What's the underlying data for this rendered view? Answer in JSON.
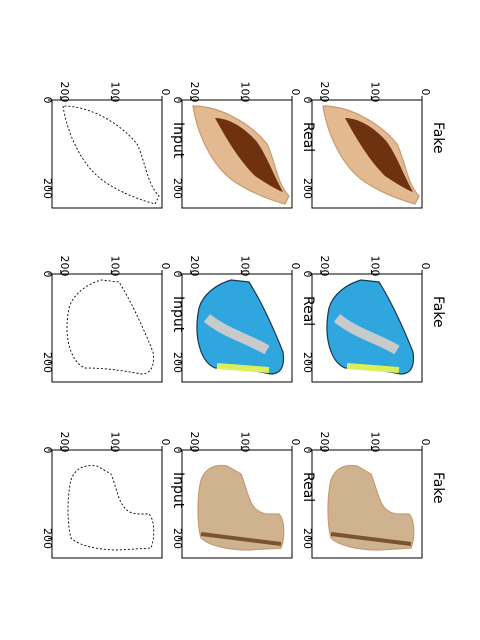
{
  "figure": {
    "rows": [
      {
        "id": "shoe",
        "panels": [
          {
            "title": "Fake",
            "image": "tan shoe with dark brown lining (generated)"
          },
          {
            "title": "Real",
            "image": "tan shoe with dark brown lining (photo)"
          },
          {
            "title": "Input",
            "image": "edge sketch of shoe"
          }
        ]
      },
      {
        "id": "sneaker",
        "panels": [
          {
            "title": "Fake",
            "image": "blue and grey running sneaker (generated)"
          },
          {
            "title": "Real",
            "image": "blue, grey and yellow running sneaker (photo)"
          },
          {
            "title": "Input",
            "image": "edge sketch of sneaker"
          }
        ]
      },
      {
        "id": "boot",
        "panels": [
          {
            "title": "Fake",
            "image": "beige suede boot (generated)"
          },
          {
            "title": "Real",
            "image": "beige suede boot (photo)"
          },
          {
            "title": "Input",
            "image": "edge sketch of boot"
          }
        ]
      }
    ],
    "axes": {
      "left_ticks": [
        "0",
        "100",
        "200"
      ],
      "bottom_ticks": [
        "0",
        "200"
      ]
    },
    "colors": {
      "tan": "#e3b991",
      "tan_dark": "#c89a6e",
      "lining": "#6e3210",
      "sky_blue": "#2fa6dd",
      "grey": "#c8cbcc",
      "lime": "#dcef5a",
      "navy": "#1d3550",
      "beige": "#cfb390",
      "beige_dark": "#a6865f",
      "sole_brown": "#7a5430"
    }
  }
}
